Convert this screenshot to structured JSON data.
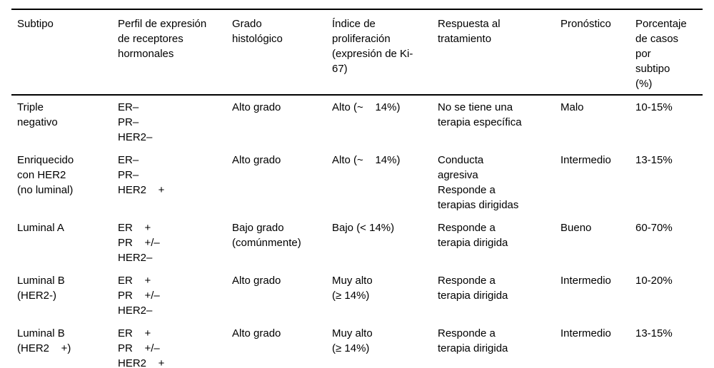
{
  "table": {
    "headers": [
      "Subtipo",
      "Perfil de expresión\nde receptores\nhormonales",
      "Grado\nhistológico",
      "Índice de\nproliferación\n(expresión de Ki-\n67)",
      "Respuesta al\ntratamiento",
      "Pronóstico",
      "Porcentaje\nde casos\npor\nsubtipo\n(%)"
    ],
    "rows": [
      [
        "Triple\nnegativo",
        "ER–\nPR–\nHER2–",
        "Alto grado",
        "Alto (~    14%)",
        "No se tiene una\nterapia específica",
        "Malo",
        "10-15%"
      ],
      [
        "Enriquecido\ncon HER2\n(no luminal)",
        "ER–\nPR–\nHER2    +",
        "Alto grado",
        "Alto (~    14%)",
        "Conducta\nagresiva\nResponde a\nterapias dirigidas",
        "Intermedio",
        "13-15%"
      ],
      [
        "Luminal A",
        "ER    +\nPR    +/–\nHER2–",
        "Bajo grado\n(comúnmente)",
        "Bajo (< 14%)",
        "Responde a\nterapia dirigida",
        "Bueno",
        "60-70%"
      ],
      [
        "Luminal B\n(HER2-)",
        "ER    +\nPR    +/–\nHER2–",
        "Alto grado",
        "Muy alto\n(≥ 14%)",
        "Responde a\nterapia dirigida",
        "Intermedio",
        "10-20%"
      ],
      [
        "Luminal B\n(HER2    +)",
        "ER    +\nPR    +/–\nHER2    +",
        "Alto grado",
        "Muy alto\n(≥ 14%)",
        "Responde a\nterapia dirigida",
        "Intermedio",
        "13-15%"
      ]
    ],
    "colors": {
      "text": "#000000",
      "background": "#ffffff",
      "rule": "#000000"
    }
  }
}
